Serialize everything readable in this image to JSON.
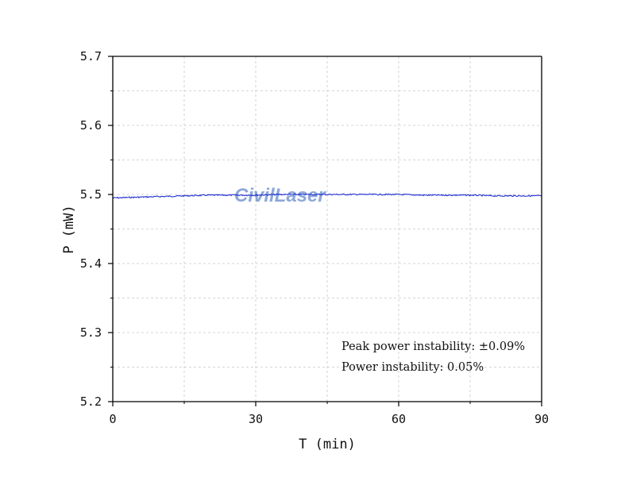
{
  "chart_data": {
    "type": "line",
    "title": "",
    "xlabel": "T (min)",
    "ylabel": "P (mW)",
    "xlim": [
      0,
      90
    ],
    "ylim": [
      5.2,
      5.7
    ],
    "x_ticks": [
      "0",
      "30",
      "60",
      "90"
    ],
    "y_ticks": [
      "5.2",
      "5.3",
      "5.4",
      "5.5",
      "5.6",
      "5.7"
    ],
    "grid": true,
    "series": [
      {
        "color": "#1f2fd0",
        "x": [
          0,
          5,
          10,
          15,
          20,
          25,
          30,
          35,
          40,
          45,
          50,
          55,
          60,
          65,
          70,
          75,
          80,
          85,
          90
        ],
        "y": [
          5.495,
          5.496,
          5.497,
          5.498,
          5.499,
          5.499,
          5.499,
          5.5,
          5.5,
          5.5,
          5.5,
          5.5,
          5.5,
          5.499,
          5.499,
          5.499,
          5.498,
          5.498,
          5.498
        ]
      }
    ],
    "annotations": [
      "Peak power instability: ±0.09%",
      "Power instability: 0.05%"
    ],
    "watermark": "CivilLaser"
  }
}
